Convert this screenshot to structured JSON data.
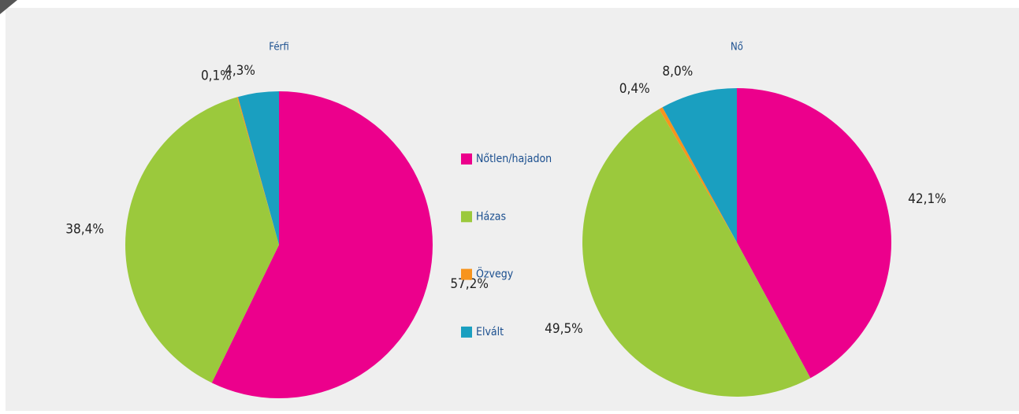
{
  "chart_data": [
    {
      "type": "pie",
      "title": "Férfi",
      "categories": [
        "Nőtlen/hajadon",
        "Házas",
        "Özvegy",
        "Elvált"
      ],
      "values": [
        57.2,
        38.4,
        0.1,
        4.3
      ],
      "value_labels": [
        "57,2%",
        "38,4%",
        "0,1%",
        "4,3%"
      ],
      "colors": [
        "#ec008c",
        "#9bc93c",
        "#f7941d",
        "#1a9fc0"
      ]
    },
    {
      "type": "pie",
      "title": "Nő",
      "categories": [
        "Nőtlen/hajadon",
        "Házas",
        "Özvegy",
        "Elvált"
      ],
      "values": [
        42.1,
        49.5,
        0.4,
        8.0
      ],
      "value_labels": [
        "42,1%",
        "49,5%",
        "0,4%",
        "8,0%"
      ],
      "colors": [
        "#ec008c",
        "#9bc93c",
        "#f7941d",
        "#1a9fc0"
      ]
    }
  ]
}
